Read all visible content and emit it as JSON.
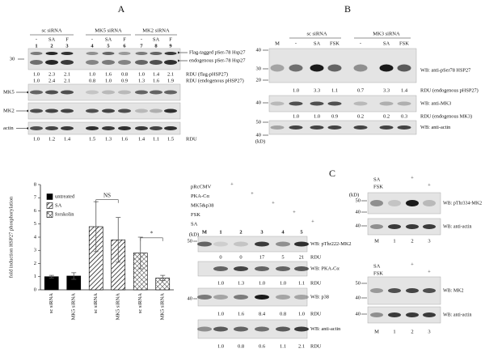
{
  "panel_a": {
    "label": "A",
    "groups": [
      {
        "name": "sc siRNA",
        "treatments": [
          "-",
          "SA",
          "F"
        ],
        "lanes": [
          "1",
          "2",
          "3"
        ]
      },
      {
        "name": "MK5 siRNA",
        "treatments": [
          "-",
          "SA",
          "F"
        ],
        "lanes": [
          "4",
          "5",
          "6"
        ]
      },
      {
        "name": "MK2 siRNA",
        "treatments": [
          "-",
          "SA",
          "F"
        ],
        "lanes": [
          "7",
          "8",
          "9"
        ]
      }
    ],
    "marker": "30",
    "phospho_labels": [
      "Flag-tagged pSer-78 Hsp27",
      "endogenous pSer-78 Hsp27"
    ],
    "rdu_rows": [
      {
        "values": [
          "1.0",
          "2.3",
          "2.1",
          "1.0",
          "1.6",
          "0.8",
          "1.0",
          "1.4",
          "2.1"
        ],
        "label": "RDU (flag-pHSP27)"
      },
      {
        "values": [
          "1.0",
          "2.4",
          "2.1",
          "0.8",
          "1.0",
          "0.9",
          "1.3",
          "1.6",
          "1.9"
        ],
        "label": "RDU (endogenous pHSP27)"
      }
    ],
    "blot_labels": [
      "MK5",
      "MK2",
      "actin"
    ],
    "actin_rdu": {
      "values": [
        "1.0",
        "1.2",
        "1.4",
        "1.5",
        "1.3",
        "1.6",
        "1.4",
        "1.1",
        "1.5"
      ],
      "label": "RDU"
    }
  },
  "panel_b": {
    "label": "B",
    "marker_lane": "M",
    "groups": [
      {
        "name": "sc siRNA",
        "treatments": [
          "-",
          "SA",
          "FSK"
        ]
      },
      {
        "name": "MK3 siRNA",
        "treatments": [
          "-",
          "SA",
          "FSK"
        ]
      }
    ],
    "blots": [
      {
        "markers": [
          "40",
          "30",
          "20"
        ],
        "label": "WB: anti-pSer78 HSP27",
        "rdu": [
          "1.0",
          "3.3",
          "1.1",
          "0.7",
          "3.3",
          "1.4"
        ],
        "rdu_label": "RDU (endogenous pHSP27)"
      },
      {
        "markers": [
          "40"
        ],
        "label": "WB: anti-MK3",
        "rdu": [
          "1.0",
          "1.0",
          "0.9",
          "0.2",
          "0.2",
          "0.3"
        ],
        "rdu_label": "RDU (endogenous MK3)"
      },
      {
        "markers": [
          "50",
          "40"
        ],
        "label": "WB: anti-actin"
      }
    ],
    "unit": "(kD)"
  },
  "chart_data": {
    "type": "bar",
    "y_label": "fold induction HSP27 phosphorylation",
    "categories": [
      "sc siRNA",
      "MK5 siRNA",
      "sc siRNA",
      "MK5 siRNA",
      "sc siRNA",
      "MK5 siRNA"
    ],
    "series": [
      {
        "name": "untreated",
        "color": "#000000",
        "pattern": "solid",
        "values": [
          1.0,
          1.05,
          null,
          null,
          null,
          null
        ],
        "errors": [
          0.1,
          0.25,
          null,
          null,
          null,
          null
        ]
      },
      {
        "name": "SA",
        "color": "#000000",
        "pattern": "diagonal",
        "values": [
          null,
          null,
          4.8,
          3.8,
          null,
          null
        ],
        "errors": [
          null,
          null,
          1.9,
          1.7,
          null,
          null
        ]
      },
      {
        "name": "forskolin",
        "color": "#000000",
        "pattern": "crosshatch",
        "values": [
          null,
          null,
          null,
          null,
          2.8,
          0.9
        ],
        "errors": [
          null,
          null,
          null,
          null,
          1.2,
          0.2
        ]
      }
    ],
    "annotations": [
      "NS",
      "*"
    ],
    "ylim": [
      0,
      8
    ],
    "yticks": [
      0,
      1,
      2,
      3,
      4,
      5,
      6,
      7,
      8
    ]
  },
  "panel_c_left": {
    "treatments": [
      {
        "name": "pRcCMV",
        "mark": "+"
      },
      {
        "name": "PKA-Cα",
        "mark": "+"
      },
      {
        "name": "MK5&p38",
        "mark": "+"
      },
      {
        "name": "FSK",
        "mark": "+"
      },
      {
        "name": "SA",
        "mark": "+"
      }
    ],
    "lanes": [
      "M",
      "1",
      "2",
      "3",
      "4",
      "5"
    ],
    "unit": "(kD)",
    "blots": [
      {
        "markers": [
          "50"
        ],
        "label": "WB: pThr222-MK2",
        "rdu": [
          "0",
          "0",
          "17",
          "5",
          "21"
        ],
        "rdu_label": "RDU"
      },
      {
        "label": "WB: PKA-Cα",
        "rdu": [
          "1.0",
          "1.3",
          "1.0",
          "1.0",
          "1.1"
        ],
        "rdu_label": "RDU"
      },
      {
        "markers": [
          "40"
        ],
        "label": "WB: p38",
        "rdu": [
          "1.0",
          "1.6",
          "8.4",
          "0.8",
          "1.0"
        ],
        "rdu_label": "RDU"
      },
      {
        "label": "WB: anti-actin",
        "rdu": [
          "1.0",
          "0.8",
          "0.6",
          "1.1",
          "2.1"
        ],
        "rdu_label": "RDU"
      }
    ]
  },
  "panel_c": {
    "label": "C",
    "top": {
      "treatments": [
        {
          "name": "SA",
          "mark": "+"
        },
        {
          "name": "FSK",
          "mark": "+"
        }
      ],
      "unit": "(kD)",
      "blots": [
        {
          "markers": [
            "50",
            "40"
          ],
          "label": "WB: pThr334-MK2"
        },
        {
          "markers": [
            "40"
          ],
          "label": "WB: anti-actin"
        }
      ],
      "lanes": [
        "M",
        "1",
        "2",
        "3"
      ]
    },
    "bottom": {
      "treatments": [
        {
          "name": "SA",
          "mark": "+"
        },
        {
          "name": "FSK",
          "mark": "+"
        }
      ],
      "blots": [
        {
          "markers": [
            "50",
            "40"
          ],
          "label": "WB: MK2"
        },
        {
          "markers": [
            "40"
          ],
          "label": "WB: anti-actin"
        }
      ],
      "lanes": [
        "M",
        "1",
        "2",
        "3"
      ]
    }
  }
}
